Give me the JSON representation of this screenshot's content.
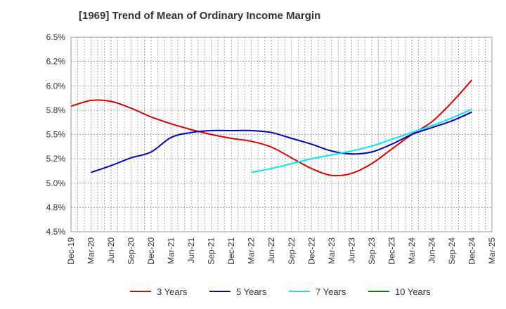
{
  "chart_data": {
    "type": "line",
    "title": "[1969]  Trend of Mean of Ordinary Income Margin",
    "xlabel": "",
    "ylabel": "",
    "x_ticks": [
      "Dec-19",
      "Mar-20",
      "Jun-20",
      "Sep-20",
      "Dec-20",
      "Mar-21",
      "Jun-21",
      "Sep-21",
      "Dec-21",
      "Mar-22",
      "Jun-22",
      "Sep-22",
      "Dec-22",
      "Mar-23",
      "Jun-23",
      "Sep-23",
      "Dec-23",
      "Mar-24",
      "Jun-24",
      "Sep-24",
      "Dec-24",
      "Mar-25"
    ],
    "y_ticks": [
      "4.5%",
      "4.8%",
      "5.0%",
      "5.2%",
      "5.5%",
      "5.8%",
      "6.0%",
      "6.2%",
      "6.5%"
    ],
    "ylim": [
      4.5,
      6.5
    ],
    "grid": true,
    "legend_position": "bottom",
    "series": [
      {
        "name": "3 Years",
        "color": "#e00000",
        "x": [
          "Dec-19",
          "Mar-20",
          "Jun-20",
          "Sep-20",
          "Dec-20",
          "Mar-21",
          "Jun-21",
          "Sep-21",
          "Dec-21",
          "Mar-22",
          "Jun-22",
          "Sep-22",
          "Dec-22",
          "Mar-23",
          "Jun-23",
          "Sep-23",
          "Dec-23",
          "Mar-24",
          "Jun-24",
          "Sep-24",
          "Dec-24"
        ],
        "values": [
          5.79,
          5.85,
          5.84,
          5.77,
          5.68,
          5.61,
          5.55,
          5.5,
          5.46,
          5.43,
          5.37,
          5.26,
          5.15,
          5.08,
          5.1,
          5.2,
          5.35,
          5.5,
          5.63,
          5.83,
          6.06
        ]
      },
      {
        "name": "5 Years",
        "color": "#0000c0",
        "x": [
          "Mar-20",
          "Jun-20",
          "Sep-20",
          "Dec-20",
          "Mar-21",
          "Jun-21",
          "Sep-21",
          "Dec-21",
          "Mar-22",
          "Jun-22",
          "Sep-22",
          "Dec-22",
          "Mar-23",
          "Jun-23",
          "Sep-23",
          "Dec-23",
          "Mar-24",
          "Jun-24",
          "Sep-24",
          "Dec-24"
        ],
        "values": [
          5.11,
          5.18,
          5.26,
          5.32,
          5.47,
          5.52,
          5.54,
          5.54,
          5.54,
          5.52,
          5.46,
          5.4,
          5.33,
          5.3,
          5.32,
          5.4,
          5.5,
          5.57,
          5.64,
          5.73
        ]
      },
      {
        "name": "7 Years",
        "color": "#00e8f0",
        "x": [
          "Mar-22",
          "Jun-22",
          "Sep-22",
          "Dec-22",
          "Mar-23",
          "Jun-23",
          "Sep-23",
          "Dec-23",
          "Mar-24",
          "Jun-24",
          "Sep-24",
          "Dec-24"
        ],
        "values": [
          5.11,
          5.15,
          5.2,
          5.25,
          5.29,
          5.33,
          5.38,
          5.45,
          5.52,
          5.59,
          5.67,
          5.76
        ]
      },
      {
        "name": "10 Years",
        "color": "#008000",
        "x": [],
        "values": []
      }
    ]
  }
}
